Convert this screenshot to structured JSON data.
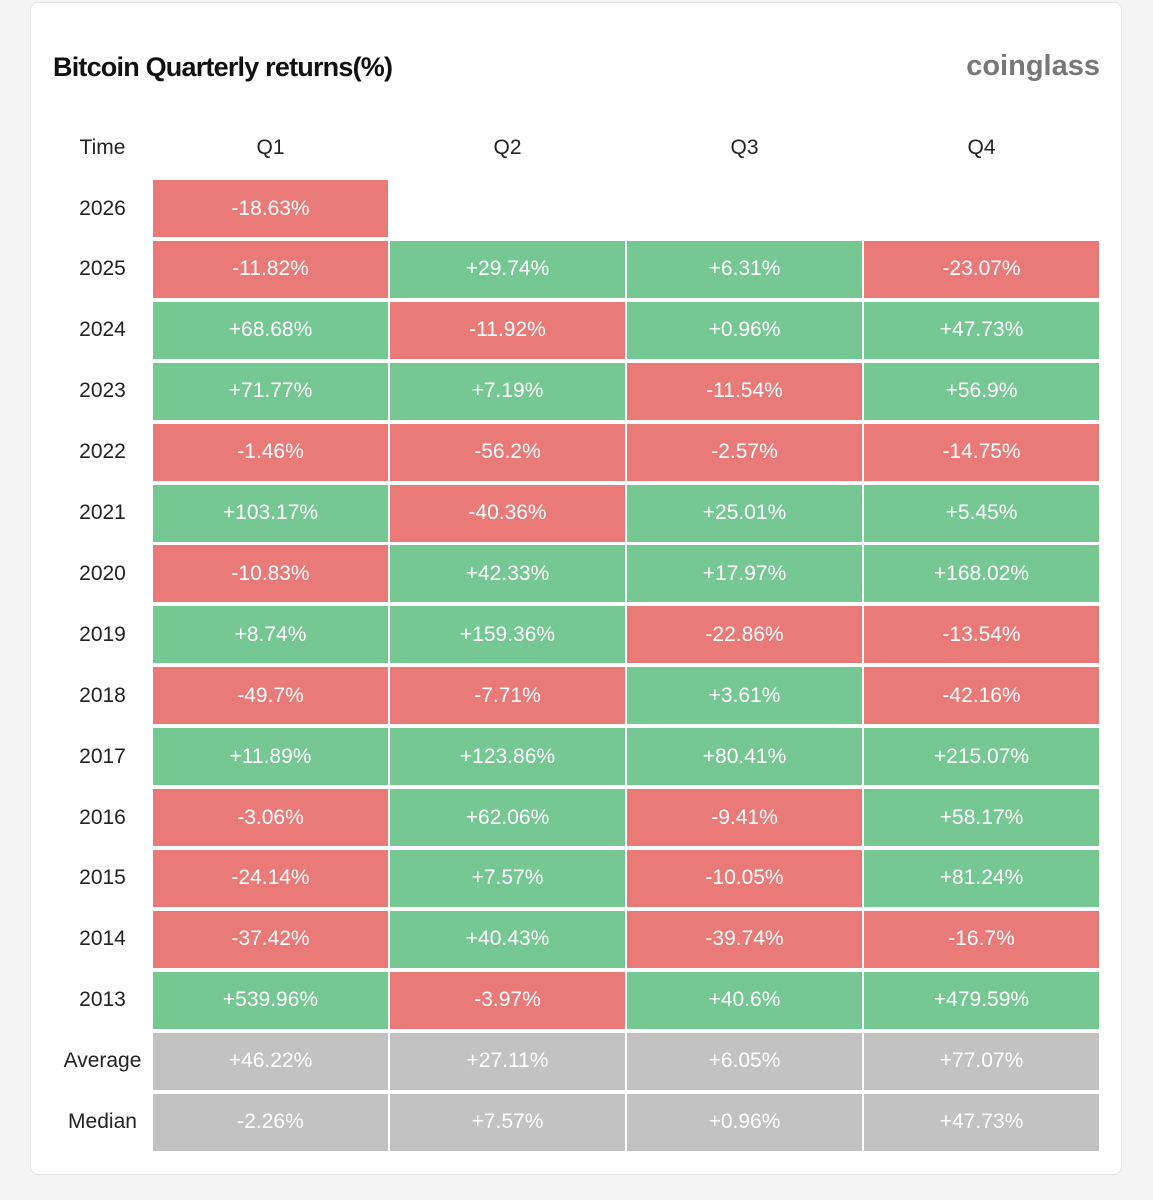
{
  "header": {
    "title": "Bitcoin Quarterly returns(%)",
    "brand": "coinglass"
  },
  "table": {
    "columns": [
      "Time",
      "Q1",
      "Q2",
      "Q3",
      "Q4"
    ],
    "rows": [
      [
        "2026",
        "-18.63%",
        null,
        null,
        null
      ],
      [
        "2025",
        "-11.82%",
        "+29.74%",
        "+6.31%",
        "-23.07%"
      ],
      [
        "2024",
        "+68.68%",
        "-11.92%",
        "+0.96%",
        "+47.73%"
      ],
      [
        "2023",
        "+71.77%",
        "+7.19%",
        "-11.54%",
        "+56.9%"
      ],
      [
        "2022",
        "-1.46%",
        "-56.2%",
        "-2.57%",
        "-14.75%"
      ],
      [
        "2021",
        "+103.17%",
        "-40.36%",
        "+25.01%",
        "+5.45%"
      ],
      [
        "2020",
        "-10.83%",
        "+42.33%",
        "+17.97%",
        "+168.02%"
      ],
      [
        "2019",
        "+8.74%",
        "+159.36%",
        "-22.86%",
        "-13.54%"
      ],
      [
        "2018",
        "-49.7%",
        "-7.71%",
        "+3.61%",
        "-42.16%"
      ],
      [
        "2017",
        "+11.89%",
        "+123.86%",
        "+80.41%",
        "+215.07%"
      ],
      [
        "2016",
        "-3.06%",
        "+62.06%",
        "-9.41%",
        "+58.17%"
      ],
      [
        "2015",
        "-24.14%",
        "+7.57%",
        "-10.05%",
        "+81.24%"
      ],
      [
        "2014",
        "-37.42%",
        "+40.43%",
        "-39.74%",
        "-16.7%"
      ],
      [
        "2013",
        "+539.96%",
        "-3.97%",
        "+40.6%",
        "+479.59%"
      ]
    ],
    "summary": [
      [
        "Average",
        "+46.22%",
        "+27.11%",
        "+6.05%",
        "+77.07%"
      ],
      [
        "Median",
        "-2.26%",
        "+7.57%",
        "+0.96%",
        "+47.73%"
      ]
    ]
  }
}
